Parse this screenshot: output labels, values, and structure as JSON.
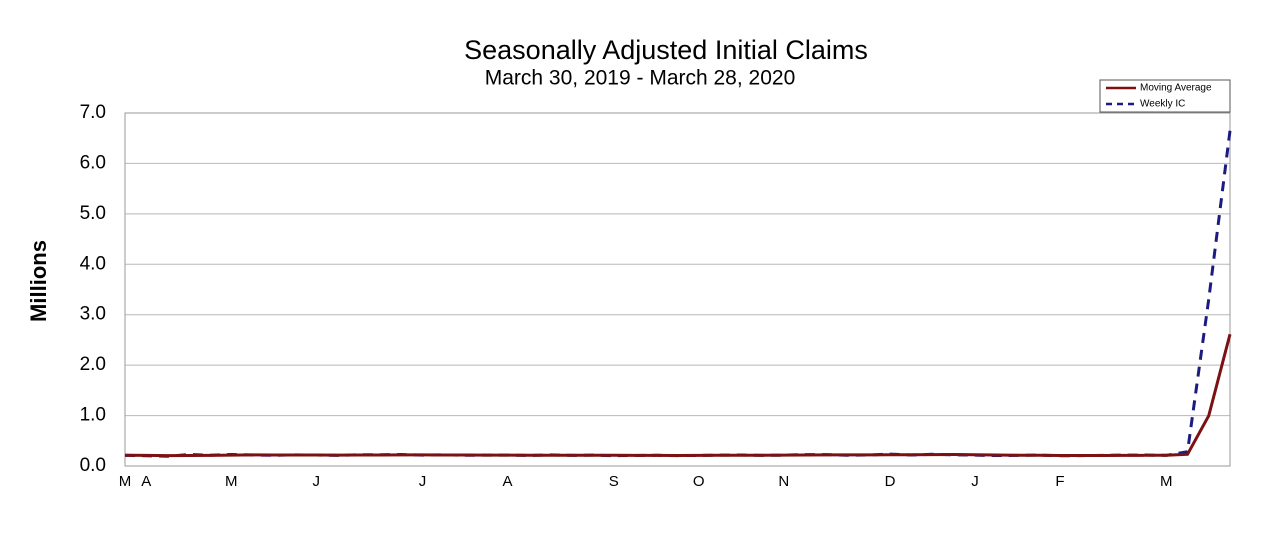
{
  "chart_data": {
    "type": "line",
    "title": "Seasonally Adjusted Initial Claims",
    "subtitle": "March 30, 2019 - March 28, 2020",
    "y_label": "Millions",
    "categories": [
      "M",
      "A",
      null,
      null,
      null,
      "M",
      null,
      null,
      null,
      "J",
      null,
      null,
      null,
      null,
      "J",
      null,
      null,
      null,
      "A",
      null,
      null,
      null,
      null,
      "S",
      null,
      null,
      null,
      "O",
      null,
      null,
      null,
      "N",
      null,
      null,
      null,
      null,
      "D",
      null,
      null,
      null,
      "J",
      null,
      null,
      null,
      "F",
      null,
      null,
      null,
      null,
      "M",
      null,
      null,
      null
    ],
    "series": [
      {
        "name": "Moving Average",
        "color": "#7b1113",
        "dashed": false,
        "values": [
          0.214,
          0.21,
          0.206,
          0.209,
          0.21,
          0.215,
          0.22,
          0.218,
          0.217,
          0.217,
          0.216,
          0.217,
          0.218,
          0.22,
          0.221,
          0.219,
          0.218,
          0.216,
          0.215,
          0.214,
          0.214,
          0.214,
          0.213,
          0.212,
          0.21,
          0.21,
          0.208,
          0.21,
          0.212,
          0.213,
          0.214,
          0.216,
          0.219,
          0.221,
          0.22,
          0.221,
          0.224,
          0.224,
          0.226,
          0.227,
          0.222,
          0.217,
          0.214,
          0.213,
          0.209,
          0.209,
          0.209,
          0.21,
          0.212,
          0.214,
          0.232,
          0.998,
          2.612
        ]
      },
      {
        "name": "Weekly IC",
        "color": "#1c1c80",
        "dashed": true,
        "values": [
          0.211,
          0.204,
          0.193,
          0.228,
          0.212,
          0.228,
          0.218,
          0.213,
          0.22,
          0.218,
          0.211,
          0.222,
          0.222,
          0.227,
          0.216,
          0.221,
          0.213,
          0.216,
          0.216,
          0.209,
          0.22,
          0.21,
          0.216,
          0.204,
          0.209,
          0.212,
          0.206,
          0.21,
          0.215,
          0.218,
          0.211,
          0.215,
          0.226,
          0.225,
          0.213,
          0.218,
          0.236,
          0.218,
          0.232,
          0.222,
          0.216,
          0.207,
          0.211,
          0.217,
          0.202,
          0.206,
          0.211,
          0.216,
          0.217,
          0.211,
          0.282,
          3.307,
          6.648
        ]
      }
    ],
    "ylim": [
      0,
      7
    ],
    "yticks": [
      {
        "value": 0,
        "label": "0.0"
      },
      {
        "value": 1,
        "label": "1.0"
      },
      {
        "value": 2,
        "label": "2.0"
      },
      {
        "value": 3,
        "label": "3.0"
      },
      {
        "value": 4,
        "label": "4.0"
      },
      {
        "value": 5,
        "label": "5.0"
      },
      {
        "value": 6,
        "label": "6.0"
      },
      {
        "value": 7,
        "label": "7.0"
      }
    ],
    "grid": true,
    "legend": "upper right"
  }
}
